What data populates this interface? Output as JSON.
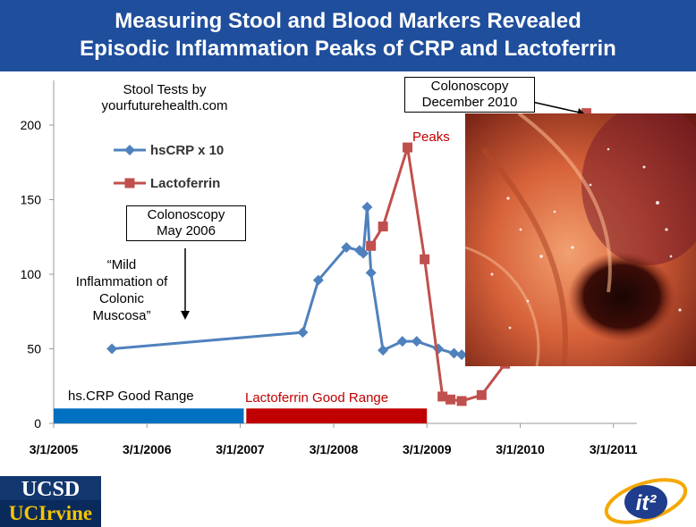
{
  "slide": {
    "title_line1": "Measuring Stool and Blood Markers Revealed",
    "title_line2": "Episodic Inflammation Peaks of CRP and Lactoferrin"
  },
  "annotations": {
    "stool_tests_line1": "Stool Tests by",
    "stool_tests_line2": "yourfuturehealth.com",
    "colonoscopy_2010_line1": "Colonoscopy",
    "colonoscopy_2010_line2": "December 2010",
    "peaks": "Peaks",
    "colonoscopy_2006_line1": "Colonoscopy",
    "colonoscopy_2006_line2": "May 2006",
    "mild_line1": "“Mild",
    "mild_line2": "Inflammation of",
    "mild_line3": "Colonic",
    "mild_line4": "Muscosa”",
    "hscrp_good_range": "hs.CRP Good Range",
    "lactoferrin_good_range": "Lactoferrin Good Range"
  },
  "logos": {
    "ucsd": "UCSD",
    "ucirvine": "UCIrvine",
    "it2": "it²"
  },
  "chart_data": {
    "type": "line",
    "title": "Measuring Stool and Blood Markers Revealed Episodic Inflammation Peaks of CRP and Lactoferrin",
    "xlabel": "",
    "ylabel": "",
    "x_axis_type": "date",
    "xlim": [
      "2005-03-01",
      "2011-06-01"
    ],
    "ylim": [
      0,
      200
    ],
    "x_ticks": [
      "3/1/2005",
      "3/1/2006",
      "3/1/2007",
      "3/1/2008",
      "3/1/2009",
      "3/1/2010",
      "3/1/2011"
    ],
    "x_tick_dates": [
      "2005-03-01",
      "2006-03-01",
      "2007-03-01",
      "2008-03-01",
      "2009-03-01",
      "2010-03-01",
      "2011-03-01"
    ],
    "y_ticks": [
      0,
      50,
      100,
      150,
      200
    ],
    "grid": false,
    "legend_position": "top-left",
    "series": [
      {
        "name": "hsCRP x 10",
        "color": "#4f81bd",
        "marker": "diamond",
        "points": [
          {
            "x": "2005-10-15",
            "y": 50
          },
          {
            "x": "2007-11-01",
            "y": 61
          },
          {
            "x": "2008-01-01",
            "y": 96
          },
          {
            "x": "2008-04-20",
            "y": 118
          },
          {
            "x": "2008-06-10",
            "y": 116
          },
          {
            "x": "2008-06-25",
            "y": 114
          },
          {
            "x": "2008-07-10",
            "y": 145
          },
          {
            "x": "2008-07-25",
            "y": 101
          },
          {
            "x": "2008-09-10",
            "y": 49
          },
          {
            "x": "2008-11-25",
            "y": 55
          },
          {
            "x": "2009-01-20",
            "y": 55
          },
          {
            "x": "2009-04-15",
            "y": 50
          },
          {
            "x": "2009-06-15",
            "y": 47
          },
          {
            "x": "2009-07-15",
            "y": 46
          }
        ]
      },
      {
        "name": "Lactoferrin",
        "color": "#c0504d",
        "marker": "square",
        "points": [
          {
            "x": "2008-07-25",
            "y": 119
          },
          {
            "x": "2008-09-10",
            "y": 132
          },
          {
            "x": "2008-12-15",
            "y": 185
          },
          {
            "x": "2009-02-20",
            "y": 110
          },
          {
            "x": "2009-05-01",
            "y": 18
          },
          {
            "x": "2009-06-01",
            "y": 16
          },
          {
            "x": "2009-07-15",
            "y": 15
          },
          {
            "x": "2009-10-01",
            "y": 19
          },
          {
            "x": "2010-01-01",
            "y": 40
          },
          {
            "x": "2010-11-15",
            "y": 208
          }
        ]
      }
    ],
    "good_ranges": [
      {
        "name": "hs.CRP Good Range",
        "color": "#0070c0",
        "x_start": "2005-03-01",
        "x_end": "2007-03-15",
        "y_max": 10
      },
      {
        "name": "Lactoferrin Good Range",
        "color": "#c00000",
        "x_start": "2007-03-25",
        "x_end": "2009-03-01",
        "y_max": 10
      }
    ]
  }
}
